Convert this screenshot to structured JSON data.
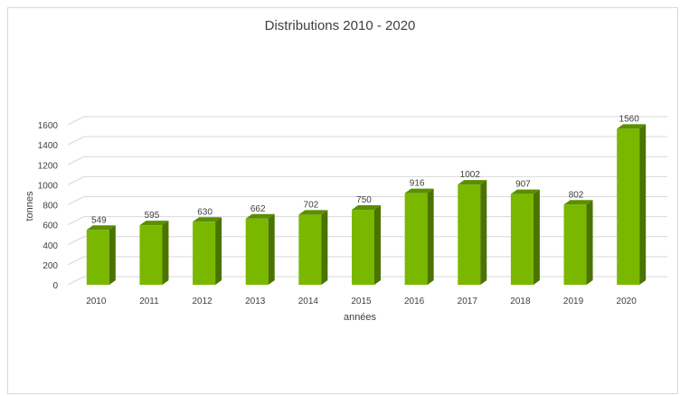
{
  "chart_data": {
    "type": "bar",
    "title": "Distributions 2010 - 2020",
    "xlabel": "années",
    "ylabel": "tonnes",
    "categories": [
      "2010",
      "2011",
      "2012",
      "2013",
      "2014",
      "2015",
      "2016",
      "2017",
      "2018",
      "2019",
      "2020"
    ],
    "values": [
      549,
      595,
      630,
      662,
      702,
      750,
      916,
      1002,
      907,
      802,
      1560
    ],
    "ylim": [
      0,
      1600
    ],
    "yticks": [
      0,
      200,
      400,
      600,
      800,
      1000,
      1200,
      1400,
      1600
    ],
    "grid": true,
    "legend": "none",
    "style": "3d-column",
    "colors": {
      "front": "#7ab800",
      "top": "#5a8f00",
      "side": "#4a7300",
      "grid": "#d9d9d9",
      "text": "#404040"
    }
  }
}
